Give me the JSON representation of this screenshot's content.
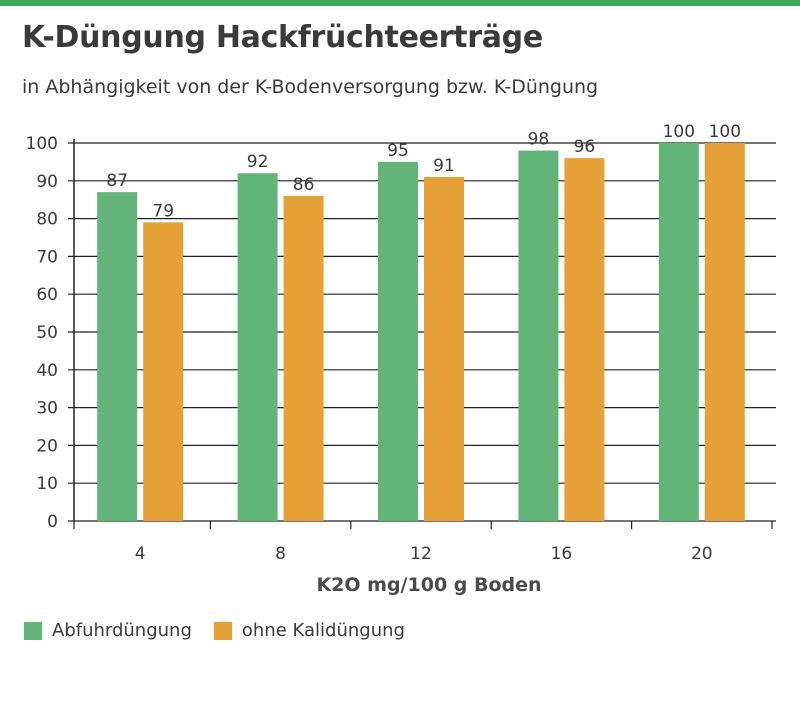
{
  "header": {
    "title": "K-Düngung Hackfrüchteerträge",
    "subtitle": "in Abhängigkeit von der K-Bodenversorgung bzw. K-Düngung"
  },
  "colors": {
    "accent_bar": "#3aa65a",
    "green": "#63b478",
    "orange": "#e6a038",
    "grid": "#222222"
  },
  "chart_data": {
    "type": "bar",
    "title": "K-Düngung Hackfrüchteerträge",
    "subtitle": "in Abhängigkeit von der K-Bodenversorgung bzw. K-Düngung",
    "xlabel": "K2O mg/100 g Boden",
    "ylabel": "",
    "categories": [
      "4",
      "8",
      "12",
      "16",
      "20"
    ],
    "yticks": [
      "0",
      "10",
      "20",
      "30",
      "40",
      "50",
      "60",
      "70",
      "80",
      "90",
      "100"
    ],
    "ylim": [
      0,
      100
    ],
    "grid": true,
    "legend_position": "bottom-left",
    "series": [
      {
        "name": "Abfuhrdüngung",
        "values": [
          87,
          92,
          95,
          98,
          100
        ],
        "labels": [
          "87",
          "92",
          "95",
          "98",
          "100"
        ],
        "color": "#63b478"
      },
      {
        "name": "ohne Kalidüngung",
        "values": [
          79,
          86,
          91,
          96,
          100
        ],
        "labels": [
          "79",
          "86",
          "91",
          "96",
          "100"
        ],
        "color": "#e6a038"
      }
    ]
  }
}
